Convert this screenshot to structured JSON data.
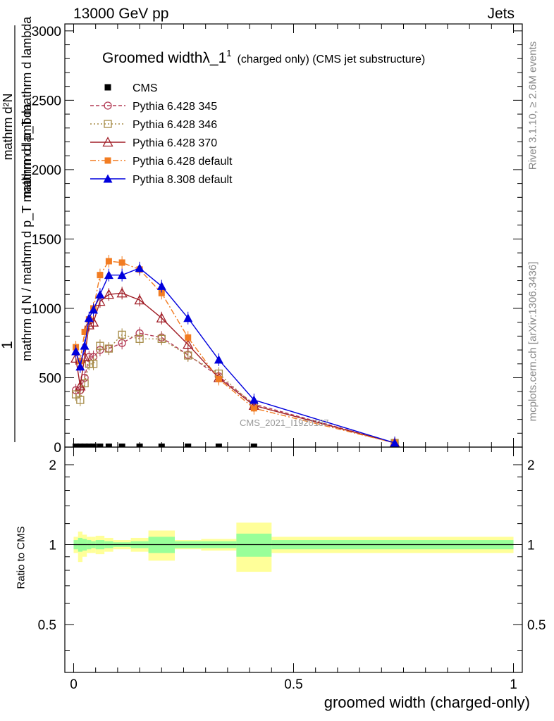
{
  "header": {
    "left": "13000 GeV pp",
    "right": "Jets"
  },
  "side_labels": {
    "rivet": "Rivet 3.1.10, ≥ 2.6M events",
    "mcplots": "mcplots.cern.ch [arXiv:1306.3436]"
  },
  "ratio_ylabel": "Ratio to CMS",
  "x_axis_label": "groomed width (charged-only)",
  "chart_data": [
    {
      "type": "line",
      "title_main": "Groomed width",
      "title_lambda": "λ_1",
      "title_sup": "1",
      "title_suffix": "(charged only) (CMS jet substructure)",
      "watermark": "CMS_2021_I1920187",
      "ylabel_num": "1",
      "ylabel_den": "mathrm d N / mathrm d p_T mathrm d lambda",
      "ylabel_num2": "mathrm d²N",
      "ylabel_den2": "mathrm d p_T mathrm d lambda",
      "xlim": [
        -0.02,
        1.02
      ],
      "ylim": [
        0,
        3050
      ],
      "yticks": [
        0,
        500,
        1000,
        1500,
        2000,
        2500,
        3000
      ],
      "xticks": [
        0,
        0.5,
        1
      ],
      "xtick_labels": [
        "0",
        "0.5",
        "1"
      ],
      "legend_position": "top-left",
      "series": [
        {
          "name": "CMS",
          "color": "#000000",
          "style": "marker-only",
          "marker": "square-filled",
          "x": [
            0.005,
            0.015,
            0.025,
            0.035,
            0.045,
            0.06,
            0.08,
            0.11,
            0.15,
            0.2,
            0.26,
            0.33,
            0.41
          ],
          "y": [
            3,
            3,
            3,
            3,
            3,
            3,
            3,
            3,
            3,
            3,
            3,
            3,
            3
          ]
        },
        {
          "name": "Pythia 6.428 345",
          "color": "#b33b55",
          "style": "dashed",
          "marker": "circle-open",
          "x": [
            0.005,
            0.015,
            0.025,
            0.035,
            0.045,
            0.06,
            0.08,
            0.11,
            0.15,
            0.2,
            0.26,
            0.33,
            0.41,
            0.73
          ],
          "y": [
            410,
            410,
            500,
            650,
            650,
            700,
            710,
            750,
            820,
            790,
            665,
            510,
            310,
            30
          ]
        },
        {
          "name": "Pythia 6.428 346",
          "color": "#a68b47",
          "style": "dotted",
          "marker": "square-open",
          "x": [
            0.005,
            0.015,
            0.025,
            0.035,
            0.045,
            0.06,
            0.08,
            0.11,
            0.15,
            0.2,
            0.26,
            0.33,
            0.41,
            0.73
          ],
          "y": [
            380,
            340,
            460,
            600,
            600,
            730,
            710,
            810,
            780,
            780,
            660,
            530,
            300,
            30
          ]
        },
        {
          "name": "Pythia 6.428 370",
          "color": "#a01d26",
          "style": "solid",
          "marker": "triangle-open",
          "x": [
            0.005,
            0.015,
            0.025,
            0.035,
            0.045,
            0.06,
            0.08,
            0.11,
            0.15,
            0.2,
            0.26,
            0.33,
            0.41,
            0.73
          ],
          "y": [
            640,
            440,
            650,
            880,
            900,
            1050,
            1100,
            1110,
            1060,
            930,
            740,
            500,
            300,
            30
          ]
        },
        {
          "name": "Pythia 6.428 default",
          "color": "#f27c22",
          "style": "dashdot",
          "marker": "square-filled",
          "x": [
            0.005,
            0.015,
            0.025,
            0.035,
            0.045,
            0.06,
            0.08,
            0.11,
            0.15,
            0.2,
            0.26,
            0.33,
            0.41,
            0.73
          ],
          "y": [
            720,
            620,
            830,
            920,
            1000,
            1240,
            1340,
            1330,
            1280,
            1110,
            790,
            490,
            280,
            30
          ]
        },
        {
          "name": "Pythia 8.308 default",
          "color": "#0000dd",
          "style": "solid",
          "marker": "triangle-filled",
          "x": [
            0.005,
            0.015,
            0.025,
            0.035,
            0.045,
            0.06,
            0.08,
            0.11,
            0.15,
            0.2,
            0.26,
            0.33,
            0.41,
            0.73
          ],
          "y": [
            690,
            580,
            730,
            930,
            990,
            1100,
            1240,
            1240,
            1290,
            1160,
            930,
            630,
            340,
            30
          ]
        }
      ]
    },
    {
      "type": "area",
      "ylabel": "Ratio to CMS",
      "xlim": [
        -0.02,
        1.02
      ],
      "ylim": [
        0.33,
        2.33
      ],
      "yticks": [
        0.5,
        1,
        2
      ],
      "ytick_labels": [
        "0.5",
        "1",
        "2"
      ],
      "reference_line": 1,
      "band_colors": {
        "inner": "#99ff99",
        "outer": "#ffff99"
      },
      "bins": [
        {
          "lo": 0.0,
          "hi": 0.01,
          "inner": [
            0.96,
            1.04
          ],
          "outer": [
            0.93,
            1.07
          ]
        },
        {
          "lo": 0.01,
          "hi": 0.02,
          "inner": [
            0.94,
            1.06
          ],
          "outer": [
            0.86,
            1.12
          ]
        },
        {
          "lo": 0.02,
          "hi": 0.03,
          "inner": [
            0.95,
            1.05
          ],
          "outer": [
            0.9,
            1.09
          ]
        },
        {
          "lo": 0.03,
          "hi": 0.04,
          "inner": [
            0.96,
            1.04
          ],
          "outer": [
            0.93,
            1.07
          ]
        },
        {
          "lo": 0.04,
          "hi": 0.05,
          "inner": [
            0.97,
            1.03
          ],
          "outer": [
            0.93,
            1.07
          ]
        },
        {
          "lo": 0.05,
          "hi": 0.07,
          "inner": [
            0.96,
            1.04
          ],
          "outer": [
            0.92,
            1.08
          ]
        },
        {
          "lo": 0.07,
          "hi": 0.09,
          "inner": [
            0.97,
            1.03
          ],
          "outer": [
            0.94,
            1.06
          ]
        },
        {
          "lo": 0.09,
          "hi": 0.13,
          "inner": [
            0.98,
            1.02
          ],
          "outer": [
            0.96,
            1.04
          ]
        },
        {
          "lo": 0.13,
          "hi": 0.17,
          "inner": [
            0.97,
            1.03
          ],
          "outer": [
            0.94,
            1.06
          ]
        },
        {
          "lo": 0.17,
          "hi": 0.23,
          "inner": [
            0.93,
            1.07
          ],
          "outer": [
            0.87,
            1.13
          ]
        },
        {
          "lo": 0.23,
          "hi": 0.29,
          "inner": [
            0.97,
            1.03
          ],
          "outer": [
            0.96,
            1.04
          ]
        },
        {
          "lo": 0.29,
          "hi": 0.37,
          "inner": [
            0.97,
            1.03
          ],
          "outer": [
            0.95,
            1.05
          ]
        },
        {
          "lo": 0.37,
          "hi": 0.45,
          "inner": [
            0.9,
            1.1
          ],
          "outer": [
            0.79,
            1.21
          ]
        },
        {
          "lo": 0.45,
          "hi": 1.0,
          "inner": [
            0.96,
            1.04
          ],
          "outer": [
            0.93,
            1.07
          ]
        }
      ]
    }
  ]
}
